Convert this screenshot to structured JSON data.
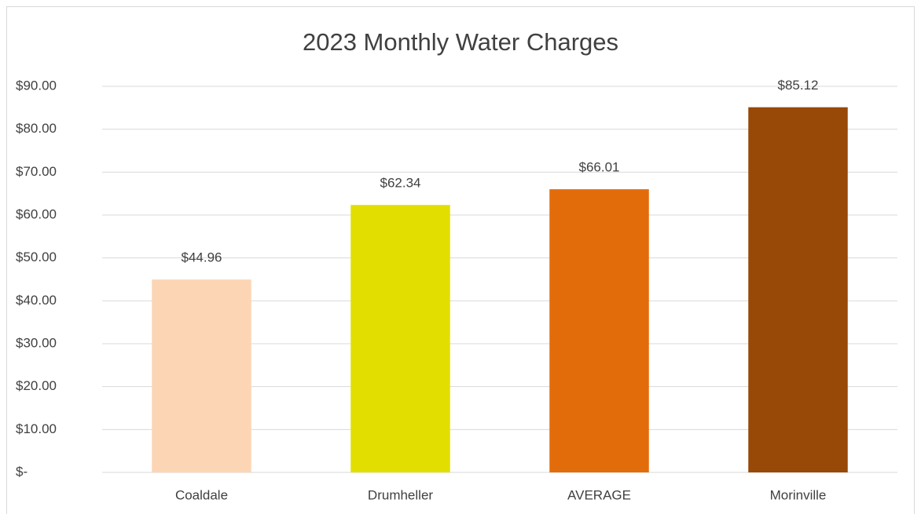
{
  "chart_data": {
    "type": "bar",
    "title": "2023 Monthly Water Charges",
    "categories": [
      "Coaldale",
      "Drumheller",
      "AVERAGE",
      "Morinville"
    ],
    "values": [
      44.96,
      62.34,
      66.01,
      85.12
    ],
    "value_labels": [
      "$44.96",
      "$62.34",
      "$66.01",
      "$85.12"
    ],
    "colors": [
      "#fcd5b5",
      "#e2df00",
      "#e36c0a",
      "#984807"
    ],
    "ylim": [
      0,
      90
    ],
    "yticks": [
      {
        "value": 0,
        "label": "$-"
      },
      {
        "value": 10,
        "label": "$10.00"
      },
      {
        "value": 20,
        "label": "$20.00"
      },
      {
        "value": 30,
        "label": "$30.00"
      },
      {
        "value": 40,
        "label": "$40.00"
      },
      {
        "value": 50,
        "label": "$50.00"
      },
      {
        "value": 60,
        "label": "$60.00"
      },
      {
        "value": 70,
        "label": "$70.00"
      },
      {
        "value": 80,
        "label": "$80.00"
      },
      {
        "value": 90,
        "label": "$90.00"
      }
    ],
    "grid": true
  }
}
